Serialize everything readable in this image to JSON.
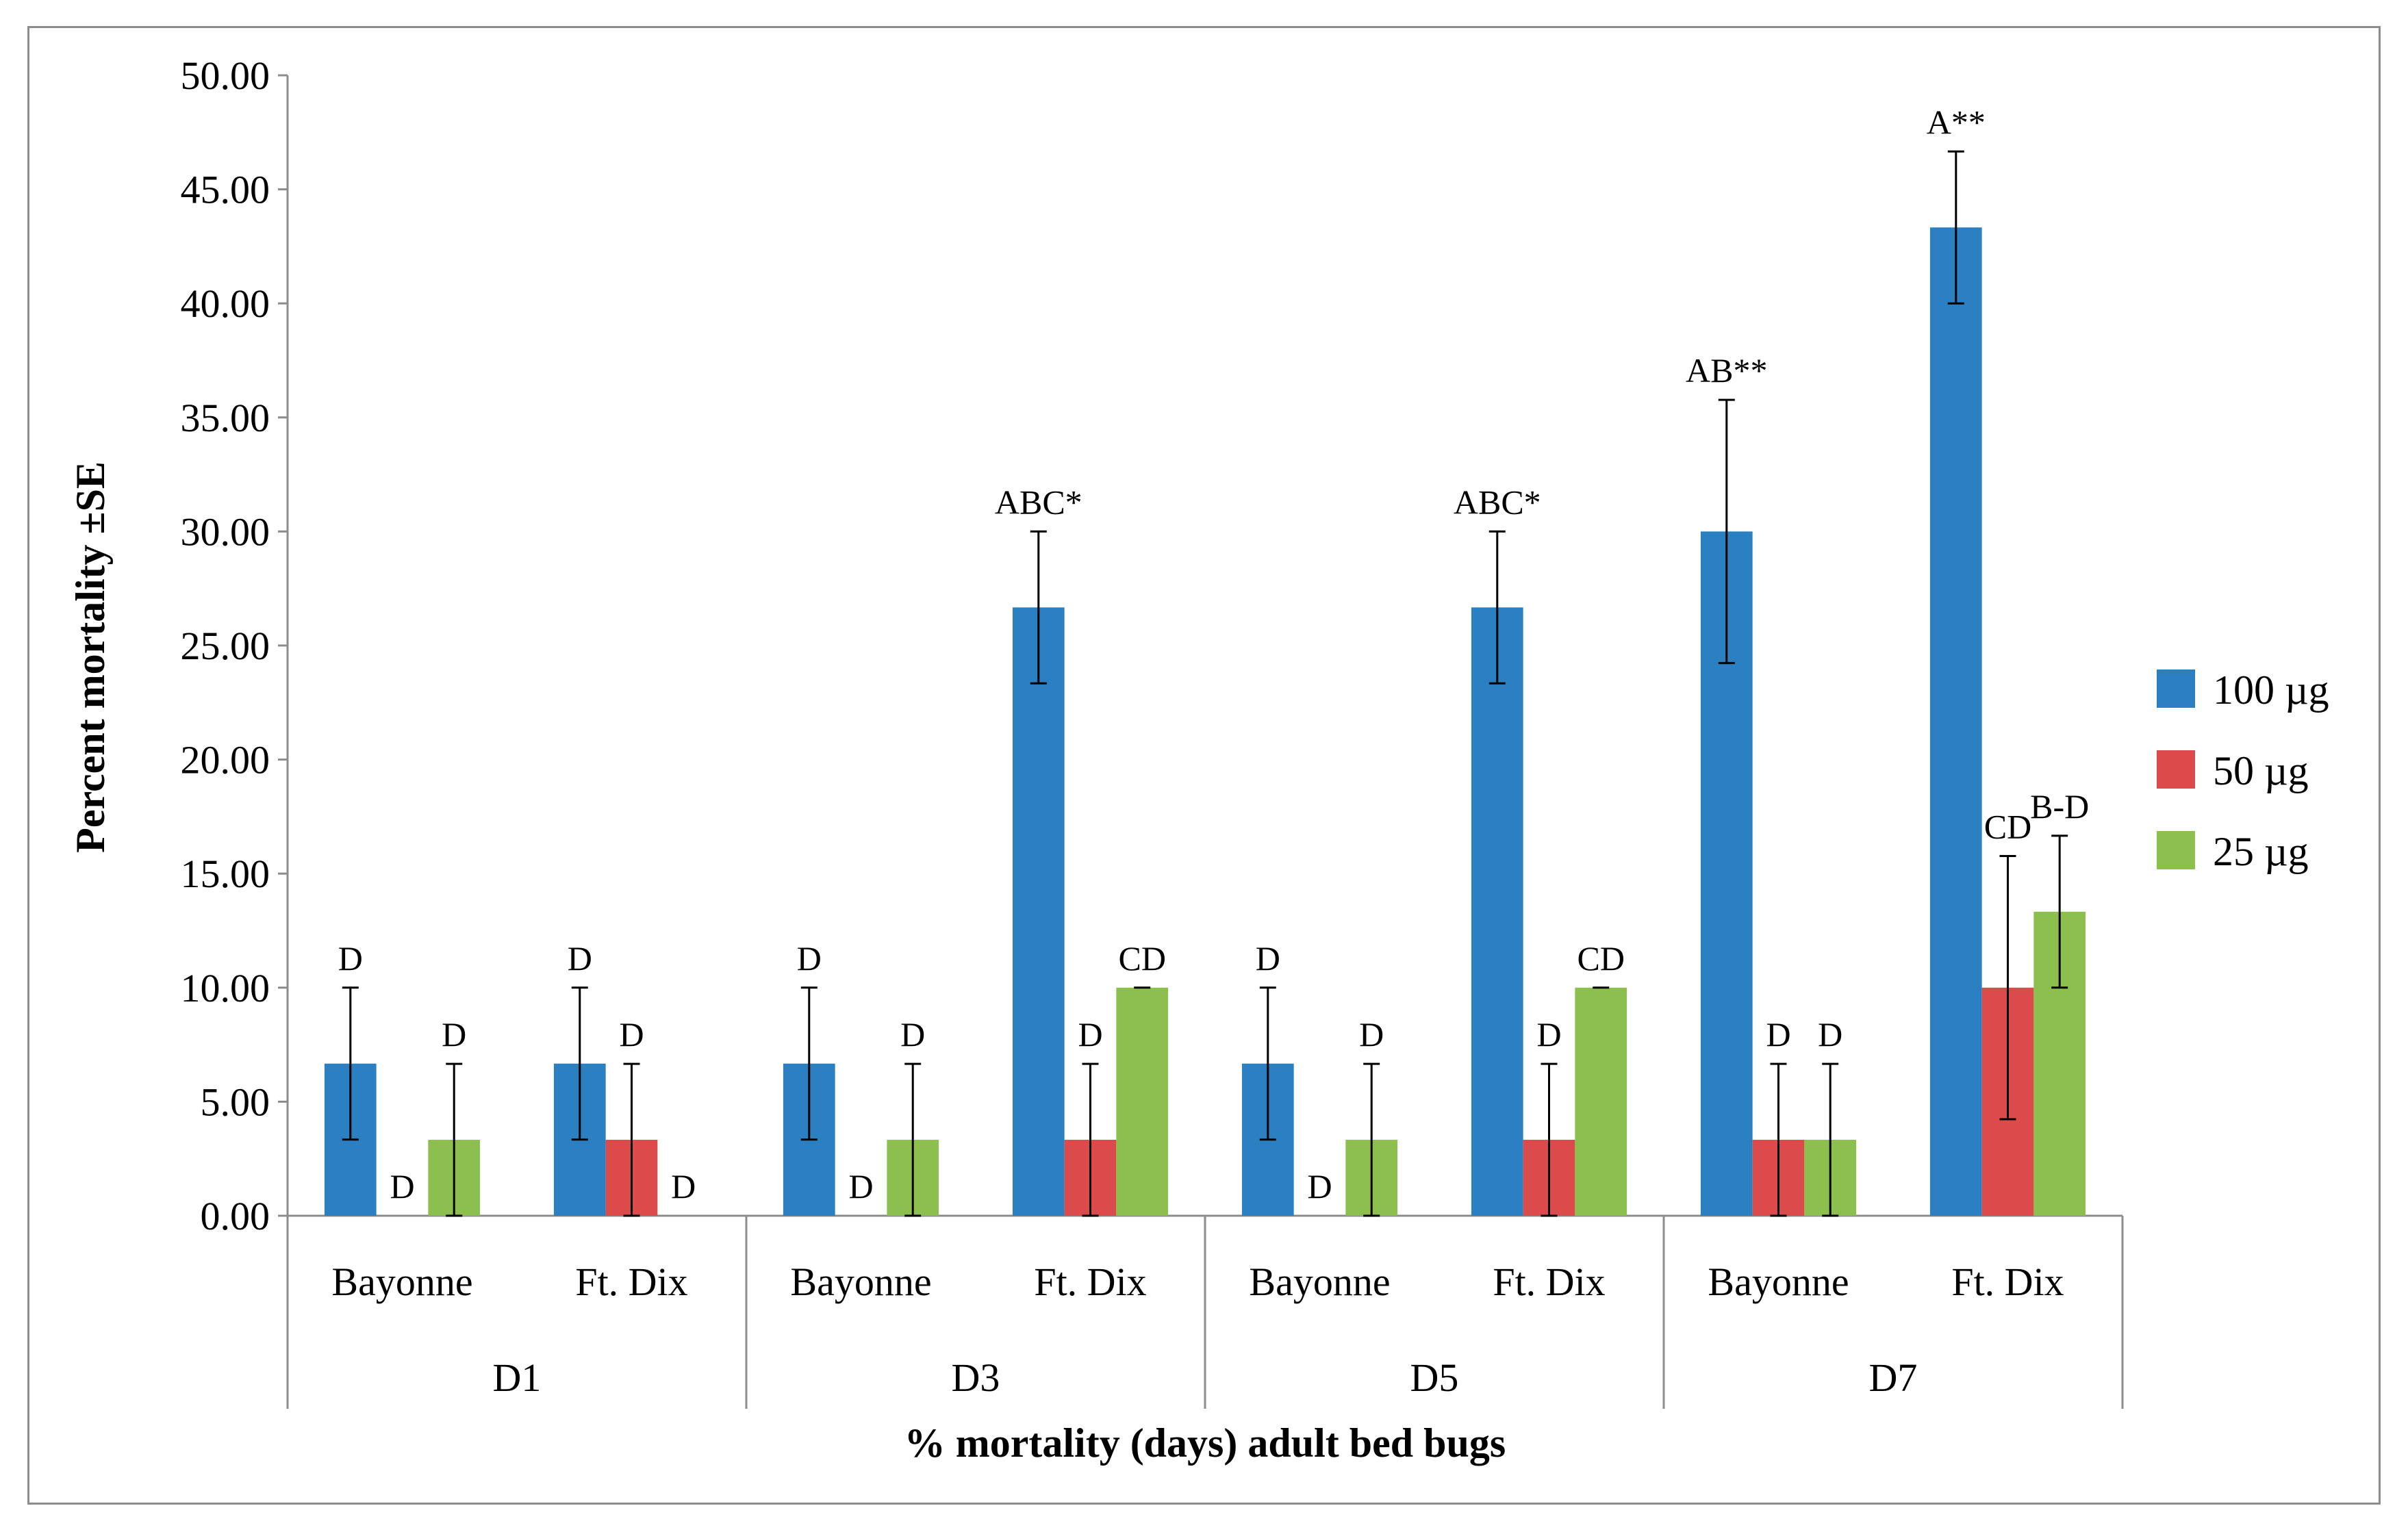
{
  "chart_data": {
    "type": "bar",
    "title": "",
    "ylabel": "Percent mortality ±SE",
    "xlabel": "% mortality (days) adult bed bugs",
    "ylim": [
      0,
      50
    ],
    "ytick_step": 5,
    "ytick_labels": [
      "0.00",
      "5.00",
      "10.00",
      "15.00",
      "20.00",
      "25.00",
      "30.00",
      "35.00",
      "40.00",
      "45.00",
      "50.00"
    ],
    "groups": [
      "D1",
      "D3",
      "D5",
      "D7"
    ],
    "categories": [
      "Bayonne",
      "Ft. Dix",
      "Bayonne",
      "Ft. Dix",
      "Bayonne",
      "Ft. Dix",
      "Bayonne",
      "Ft. Dix"
    ],
    "grid": false,
    "legend_position": "right",
    "series": [
      {
        "name": "100 µg",
        "color": "#2a80c1",
        "values": [
          6.67,
          6.67,
          6.67,
          26.67,
          6.67,
          26.67,
          30.0,
          43.33
        ],
        "errors": [
          3.33,
          3.33,
          3.33,
          3.33,
          3.33,
          3.33,
          5.77,
          3.33
        ],
        "labels": [
          "D",
          "D",
          "D",
          "ABC*",
          "D",
          "ABC*",
          "AB**",
          "A**"
        ]
      },
      {
        "name": "50 µg",
        "color": "#db4b4b",
        "values": [
          0,
          3.33,
          0,
          3.33,
          0,
          3.33,
          3.33,
          10.0
        ],
        "errors": [
          0,
          3.33,
          0,
          3.33,
          0,
          3.33,
          3.33,
          5.77
        ],
        "labels": [
          "D",
          "D",
          "D",
          "D",
          "D",
          "D",
          "D",
          "CD"
        ]
      },
      {
        "name": "25 µg",
        "color": "#8cbf4d",
        "values": [
          3.33,
          0,
          3.33,
          10.0,
          3.33,
          10.0,
          3.33,
          13.33
        ],
        "errors": [
          3.33,
          0,
          3.33,
          0,
          3.33,
          0,
          3.33,
          3.33
        ],
        "labels": [
          "D",
          "D",
          "D",
          "CD",
          "D",
          "CD",
          "D",
          "B-D"
        ]
      }
    ]
  }
}
